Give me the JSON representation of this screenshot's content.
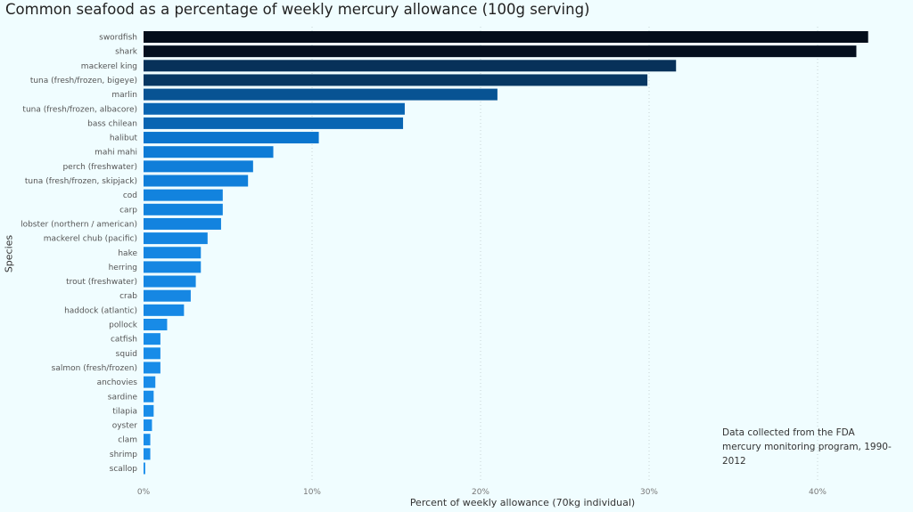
{
  "chart_data": {
    "type": "bar",
    "orientation": "horizontal",
    "title": "Common seafood as a percentage of weekly mercury allowance (100g serving)",
    "xlabel": "Percent of weekly allowance (70kg individual)",
    "ylabel": "Species",
    "xlim": [
      0,
      43
    ],
    "x_ticks": [
      "0%",
      "10%",
      "20%",
      "30%",
      "40%"
    ],
    "x_tick_values": [
      0,
      10,
      20,
      30,
      40
    ],
    "grid": "vertical dotted",
    "annotation": "Data collected from the FDA mercury monitoring program, 1990-2012",
    "categories": [
      "swordfish",
      "shark",
      "mackerel king",
      "tuna (fresh/frozen, bigeye)",
      "marlin",
      "tuna (fresh/frozen, albacore)",
      "bass chilean",
      "halibut",
      "mahi mahi",
      "perch (freshwater)",
      "tuna (fresh/frozen, skipjack)",
      "cod",
      "carp",
      "lobster (northern / american)",
      "mackerel chub (pacific)",
      "hake",
      "herring",
      "trout (freshwater)",
      "crab",
      "haddock (atlantic)",
      "pollock",
      "catfish",
      "squid",
      "salmon (fresh/frozen)",
      "anchovies",
      "sardine",
      "tilapia",
      "oyster",
      "clam",
      "shrimp",
      "scallop"
    ],
    "values": [
      43.0,
      42.3,
      31.6,
      29.9,
      21.0,
      15.5,
      15.4,
      10.4,
      7.7,
      6.5,
      6.2,
      4.7,
      4.7,
      4.6,
      3.8,
      3.4,
      3.4,
      3.1,
      2.8,
      2.4,
      1.4,
      1.0,
      1.0,
      1.0,
      0.7,
      0.6,
      0.6,
      0.5,
      0.4,
      0.4,
      0.1
    ],
    "color_scale": [
      "#050d1a",
      "#0a76d0",
      "#1a8eeb"
    ]
  }
}
